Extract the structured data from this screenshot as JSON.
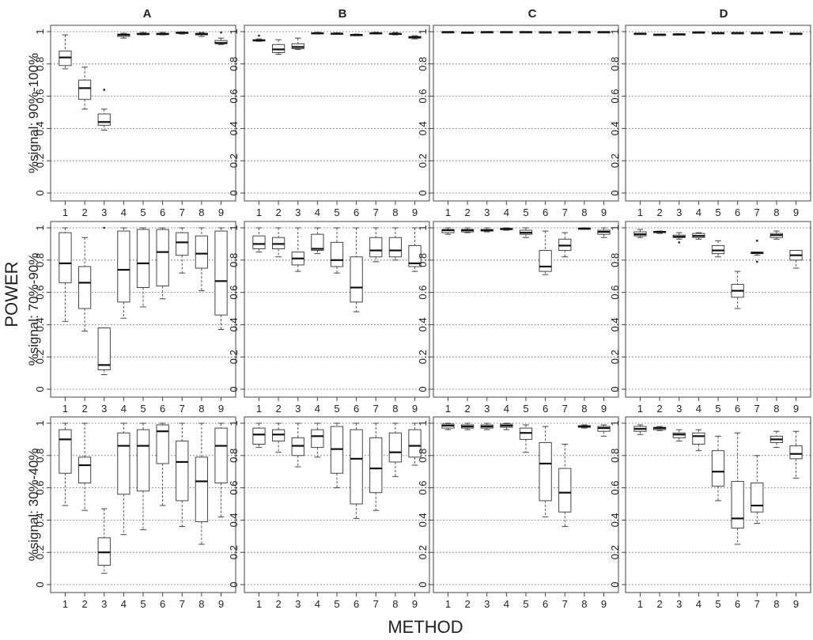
{
  "figure": {
    "ylabel": "POWER",
    "xlabel": "METHOD",
    "columns": [
      "A",
      "B",
      "C",
      "D"
    ],
    "rows": [
      "%signal: 90%-100%",
      "%signal: 70%-90%",
      "%signal: 30%-40%"
    ],
    "x_ticks": [
      "1",
      "2",
      "3",
      "4",
      "5",
      "6",
      "7",
      "8",
      "9"
    ],
    "y_ticks": [
      "0",
      "0.2",
      "0.4",
      "0.6",
      "0.8",
      "1"
    ]
  },
  "chart_data": [
    {
      "type": "box",
      "panel": "A",
      "row": "%signal: 90%-100%",
      "ylim": [
        0,
        1
      ],
      "grid": "horizontal dotted",
      "categories": [
        "1",
        "2",
        "3",
        "4",
        "5",
        "6",
        "7",
        "8",
        "9"
      ],
      "boxes": [
        {
          "min": 0.77,
          "q1": 0.79,
          "median": 0.84,
          "q3": 0.88,
          "max": 0.98
        },
        {
          "min": 0.52,
          "q1": 0.58,
          "median": 0.65,
          "q3": 0.7,
          "max": 0.78
        },
        {
          "min": 0.39,
          "q1": 0.42,
          "median": 0.44,
          "q3": 0.49,
          "max": 0.52,
          "outliers": [
            0.64
          ]
        },
        {
          "min": 0.96,
          "q1": 0.97,
          "median": 0.98,
          "q3": 0.985,
          "max": 0.99
        },
        {
          "min": 0.98,
          "q1": 0.982,
          "median": 0.985,
          "q3": 0.99,
          "max": 0.995
        },
        {
          "min": 0.98,
          "q1": 0.982,
          "median": 0.985,
          "q3": 0.99,
          "max": 0.995
        },
        {
          "min": 0.985,
          "q1": 0.99,
          "median": 0.993,
          "q3": 0.996,
          "max": 0.999
        },
        {
          "min": 0.97,
          "q1": 0.98,
          "median": 0.985,
          "q3": 0.99,
          "max": 0.995
        },
        {
          "min": 0.92,
          "q1": 0.925,
          "median": 0.93,
          "q3": 0.945,
          "max": 0.96,
          "outliers": [
            0.995
          ]
        }
      ]
    },
    {
      "type": "box",
      "panel": "B",
      "row": "%signal: 90%-100%",
      "ylim": [
        0,
        1
      ],
      "grid": "horizontal dotted",
      "categories": [
        "1",
        "2",
        "3",
        "4",
        "5",
        "6",
        "7",
        "8",
        "9"
      ],
      "boxes": [
        {
          "min": 0.94,
          "q1": 0.943,
          "median": 0.946,
          "q3": 0.95,
          "max": 0.955,
          "outliers": [
            0.975
          ]
        },
        {
          "min": 0.86,
          "q1": 0.87,
          "median": 0.89,
          "q3": 0.92,
          "max": 0.95
        },
        {
          "min": 0.89,
          "q1": 0.895,
          "median": 0.905,
          "q3": 0.925,
          "max": 0.96
        },
        {
          "min": 0.985,
          "q1": 0.988,
          "median": 0.99,
          "q3": 0.993,
          "max": 0.996
        },
        {
          "min": 0.983,
          "q1": 0.986,
          "median": 0.988,
          "q3": 0.99,
          "max": 0.993
        },
        {
          "min": 0.975,
          "q1": 0.978,
          "median": 0.98,
          "q3": 0.982,
          "max": 0.985
        },
        {
          "min": 0.985,
          "q1": 0.988,
          "median": 0.99,
          "q3": 0.993,
          "max": 0.996
        },
        {
          "min": 0.98,
          "q1": 0.983,
          "median": 0.986,
          "q3": 0.99,
          "max": 0.995
        },
        {
          "min": 0.955,
          "q1": 0.96,
          "median": 0.965,
          "q3": 0.97,
          "max": 0.975
        }
      ]
    },
    {
      "type": "box",
      "panel": "C",
      "row": "%signal: 90%-100%",
      "ylim": [
        0,
        1
      ],
      "grid": "horizontal dotted",
      "categories": [
        "1",
        "2",
        "3",
        "4",
        "5",
        "6",
        "7",
        "8",
        "9"
      ],
      "boxes": [
        {
          "min": 0.996,
          "q1": 0.997,
          "median": 0.998,
          "q3": 0.999,
          "max": 1.0
        },
        {
          "min": 0.992,
          "q1": 0.994,
          "median": 0.995,
          "q3": 0.996,
          "max": 0.997
        },
        {
          "min": 0.996,
          "q1": 0.997,
          "median": 0.998,
          "q3": 0.999,
          "max": 1.0
        },
        {
          "min": 0.996,
          "q1": 0.997,
          "median": 0.998,
          "q3": 0.999,
          "max": 1.0
        },
        {
          "min": 0.996,
          "q1": 0.997,
          "median": 0.998,
          "q3": 0.999,
          "max": 1.0
        },
        {
          "min": 0.995,
          "q1": 0.996,
          "median": 0.997,
          "q3": 0.998,
          "max": 0.999
        },
        {
          "min": 0.995,
          "q1": 0.996,
          "median": 0.997,
          "q3": 0.998,
          "max": 0.999
        },
        {
          "min": 0.996,
          "q1": 0.997,
          "median": 0.998,
          "q3": 0.999,
          "max": 1.0
        },
        {
          "min": 0.996,
          "q1": 0.997,
          "median": 0.998,
          "q3": 0.999,
          "max": 1.0
        }
      ]
    },
    {
      "type": "box",
      "panel": "D",
      "row": "%signal: 90%-100%",
      "ylim": [
        0,
        1
      ],
      "grid": "horizontal dotted",
      "categories": [
        "1",
        "2",
        "3",
        "4",
        "5",
        "6",
        "7",
        "8",
        "9"
      ],
      "boxes": [
        {
          "min": 0.985,
          "q1": 0.987,
          "median": 0.988,
          "q3": 0.989,
          "max": 0.99
        },
        {
          "min": 0.98,
          "q1": 0.981,
          "median": 0.982,
          "q3": 0.983,
          "max": 0.984
        },
        {
          "min": 0.982,
          "q1": 0.983,
          "median": 0.984,
          "q3": 0.985,
          "max": 0.986
        },
        {
          "min": 0.994,
          "q1": 0.995,
          "median": 0.996,
          "q3": 0.997,
          "max": 0.998
        },
        {
          "min": 0.99,
          "q1": 0.991,
          "median": 0.992,
          "q3": 0.993,
          "max": 0.994
        },
        {
          "min": 0.99,
          "q1": 0.991,
          "median": 0.992,
          "q3": 0.993,
          "max": 0.994
        },
        {
          "min": 0.99,
          "q1": 0.991,
          "median": 0.992,
          "q3": 0.993,
          "max": 0.994
        },
        {
          "min": 0.994,
          "q1": 0.995,
          "median": 0.996,
          "q3": 0.997,
          "max": 0.998
        },
        {
          "min": 0.986,
          "q1": 0.987,
          "median": 0.988,
          "q3": 0.989,
          "max": 0.99
        }
      ]
    },
    {
      "type": "box",
      "panel": "A",
      "row": "%signal: 70%-90%",
      "ylim": [
        0,
        1
      ],
      "grid": "horizontal dotted",
      "categories": [
        "1",
        "2",
        "3",
        "4",
        "5",
        "6",
        "7",
        "8",
        "9"
      ],
      "boxes": [
        {
          "min": 0.42,
          "q1": 0.66,
          "median": 0.78,
          "q3": 0.97,
          "max": 1.0
        },
        {
          "min": 0.36,
          "q1": 0.5,
          "median": 0.66,
          "q3": 0.76,
          "max": 0.94
        },
        {
          "min": 0.09,
          "q1": 0.12,
          "median": 0.15,
          "q3": 0.38,
          "max": 0.38,
          "outliers": [
            1.0
          ]
        },
        {
          "min": 0.44,
          "q1": 0.54,
          "median": 0.74,
          "q3": 0.98,
          "max": 1.0
        },
        {
          "min": 0.51,
          "q1": 0.63,
          "median": 0.78,
          "q3": 0.99,
          "max": 1.0
        },
        {
          "min": 0.56,
          "q1": 0.64,
          "median": 0.85,
          "q3": 0.99,
          "max": 1.0
        },
        {
          "min": 0.72,
          "q1": 0.83,
          "median": 0.91,
          "q3": 0.97,
          "max": 1.0
        },
        {
          "min": 0.61,
          "q1": 0.75,
          "median": 0.84,
          "q3": 0.95,
          "max": 1.0
        },
        {
          "min": 0.37,
          "q1": 0.46,
          "median": 0.67,
          "q3": 0.98,
          "max": 1.0
        }
      ]
    },
    {
      "type": "box",
      "panel": "B",
      "row": "%signal: 70%-90%",
      "ylim": [
        0,
        1
      ],
      "grid": "horizontal dotted",
      "categories": [
        "1",
        "2",
        "3",
        "4",
        "5",
        "6",
        "7",
        "8",
        "9"
      ],
      "boxes": [
        {
          "min": 0.85,
          "q1": 0.87,
          "median": 0.9,
          "q3": 0.95,
          "max": 1.0
        },
        {
          "min": 0.82,
          "q1": 0.87,
          "median": 0.9,
          "q3": 0.94,
          "max": 1.0
        },
        {
          "min": 0.73,
          "q1": 0.77,
          "median": 0.81,
          "q3": 0.85,
          "max": 1.0
        },
        {
          "min": 0.84,
          "q1": 0.86,
          "median": 0.87,
          "q3": 0.96,
          "max": 1.0
        },
        {
          "min": 0.72,
          "q1": 0.76,
          "median": 0.8,
          "q3": 0.91,
          "max": 1.0
        },
        {
          "min": 0.48,
          "q1": 0.54,
          "median": 0.63,
          "q3": 0.82,
          "max": 1.0
        },
        {
          "min": 0.79,
          "q1": 0.82,
          "median": 0.86,
          "q3": 0.94,
          "max": 1.0
        },
        {
          "min": 0.8,
          "q1": 0.82,
          "median": 0.86,
          "q3": 0.94,
          "max": 1.0
        },
        {
          "min": 0.73,
          "q1": 0.76,
          "median": 0.78,
          "q3": 0.89,
          "max": 1.0
        }
      ]
    },
    {
      "type": "box",
      "panel": "C",
      "row": "%signal: 70%-90%",
      "ylim": [
        0,
        1
      ],
      "grid": "horizontal dotted",
      "categories": [
        "1",
        "2",
        "3",
        "4",
        "5",
        "6",
        "7",
        "8",
        "9"
      ],
      "boxes": [
        {
          "min": 0.96,
          "q1": 0.97,
          "median": 0.985,
          "q3": 0.99,
          "max": 1.0
        },
        {
          "min": 0.97,
          "q1": 0.975,
          "median": 0.985,
          "q3": 0.99,
          "max": 1.0
        },
        {
          "min": 0.975,
          "q1": 0.98,
          "median": 0.985,
          "q3": 0.99,
          "max": 1.0
        },
        {
          "min": 0.985,
          "q1": 0.99,
          "median": 0.993,
          "q3": 0.996,
          "max": 1.0
        },
        {
          "min": 0.94,
          "q1": 0.96,
          "median": 0.97,
          "q3": 0.985,
          "max": 1.0
        },
        {
          "min": 0.71,
          "q1": 0.73,
          "median": 0.76,
          "q3": 0.86,
          "max": 0.98
        },
        {
          "min": 0.82,
          "q1": 0.86,
          "median": 0.89,
          "q3": 0.93,
          "max": 0.97
        },
        {
          "min": 0.99,
          "q1": 0.993,
          "median": 0.996,
          "q3": 0.998,
          "max": 1.0
        },
        {
          "min": 0.94,
          "q1": 0.96,
          "median": 0.975,
          "q3": 0.985,
          "max": 1.0
        }
      ]
    },
    {
      "type": "box",
      "panel": "D",
      "row": "%signal: 70%-90%",
      "ylim": [
        0,
        1
      ],
      "grid": "horizontal dotted",
      "categories": [
        "1",
        "2",
        "3",
        "4",
        "5",
        "6",
        "7",
        "8",
        "9"
      ],
      "boxes": [
        {
          "min": 0.94,
          "q1": 0.95,
          "median": 0.96,
          "q3": 0.975,
          "max": 0.99
        },
        {
          "min": 0.965,
          "q1": 0.97,
          "median": 0.975,
          "q3": 0.978,
          "max": 0.98
        },
        {
          "min": 0.93,
          "q1": 0.94,
          "median": 0.945,
          "q3": 0.955,
          "max": 0.97,
          "outliers": [
            0.91
          ]
        },
        {
          "min": 0.93,
          "q1": 0.94,
          "median": 0.95,
          "q3": 0.965,
          "max": 0.97
        },
        {
          "min": 0.82,
          "q1": 0.84,
          "median": 0.86,
          "q3": 0.89,
          "max": 0.92
        },
        {
          "min": 0.5,
          "q1": 0.57,
          "median": 0.61,
          "q3": 0.65,
          "max": 0.73
        },
        {
          "min": 0.83,
          "q1": 0.84,
          "median": 0.845,
          "q3": 0.85,
          "max": 0.85,
          "outliers": [
            0.79,
            0.92
          ]
        },
        {
          "min": 0.93,
          "q1": 0.94,
          "median": 0.955,
          "q3": 0.965,
          "max": 0.98
        },
        {
          "min": 0.75,
          "q1": 0.8,
          "median": 0.83,
          "q3": 0.86,
          "max": 0.86
        }
      ]
    },
    {
      "type": "box",
      "panel": "A",
      "row": "%signal: 30%-40%",
      "ylim": [
        0,
        1
      ],
      "grid": "horizontal dotted",
      "categories": [
        "1",
        "2",
        "3",
        "4",
        "5",
        "6",
        "7",
        "8",
        "9"
      ],
      "boxes": [
        {
          "min": 0.49,
          "q1": 0.69,
          "median": 0.9,
          "q3": 0.96,
          "max": 1.0
        },
        {
          "min": 0.46,
          "q1": 0.63,
          "median": 0.74,
          "q3": 0.79,
          "max": 1.0
        },
        {
          "min": 0.07,
          "q1": 0.12,
          "median": 0.2,
          "q3": 0.29,
          "max": 0.47
        },
        {
          "min": 0.31,
          "q1": 0.56,
          "median": 0.86,
          "q3": 0.94,
          "max": 1.0
        },
        {
          "min": 0.34,
          "q1": 0.58,
          "median": 0.86,
          "q3": 0.96,
          "max": 1.0
        },
        {
          "min": 0.49,
          "q1": 0.75,
          "median": 0.95,
          "q3": 0.99,
          "max": 1.0
        },
        {
          "min": 0.36,
          "q1": 0.52,
          "median": 0.76,
          "q3": 0.89,
          "max": 1.0
        },
        {
          "min": 0.25,
          "q1": 0.39,
          "median": 0.64,
          "q3": 0.79,
          "max": 1.0
        },
        {
          "min": 0.42,
          "q1": 0.63,
          "median": 0.86,
          "q3": 0.97,
          "max": 1.0
        }
      ]
    },
    {
      "type": "box",
      "panel": "B",
      "row": "%signal: 30%-40%",
      "ylim": [
        0,
        1
      ],
      "grid": "horizontal dotted",
      "categories": [
        "1",
        "2",
        "3",
        "4",
        "5",
        "6",
        "7",
        "8",
        "9"
      ],
      "boxes": [
        {
          "min": 0.85,
          "q1": 0.87,
          "median": 0.93,
          "q3": 0.97,
          "max": 1.0
        },
        {
          "min": 0.82,
          "q1": 0.89,
          "median": 0.93,
          "q3": 0.96,
          "max": 1.0
        },
        {
          "min": 0.73,
          "q1": 0.8,
          "median": 0.86,
          "q3": 0.91,
          "max": 1.0
        },
        {
          "min": 0.79,
          "q1": 0.85,
          "median": 0.92,
          "q3": 0.96,
          "max": 1.0
        },
        {
          "min": 0.6,
          "q1": 0.69,
          "median": 0.84,
          "q3": 0.98,
          "max": 1.0
        },
        {
          "min": 0.41,
          "q1": 0.5,
          "median": 0.78,
          "q3": 0.96,
          "max": 1.0
        },
        {
          "min": 0.46,
          "q1": 0.57,
          "median": 0.72,
          "q3": 0.91,
          "max": 1.0
        },
        {
          "min": 0.67,
          "q1": 0.76,
          "median": 0.82,
          "q3": 0.94,
          "max": 1.0
        },
        {
          "min": 0.74,
          "q1": 0.79,
          "median": 0.86,
          "q3": 0.96,
          "max": 1.0
        }
      ]
    },
    {
      "type": "box",
      "panel": "C",
      "row": "%signal: 30%-40%",
      "ylim": [
        0,
        1
      ],
      "grid": "horizontal dotted",
      "categories": [
        "1",
        "2",
        "3",
        "4",
        "5",
        "6",
        "7",
        "8",
        "9"
      ],
      "boxes": [
        {
          "min": 0.96,
          "q1": 0.97,
          "median": 0.985,
          "q3": 0.995,
          "max": 1.0
        },
        {
          "min": 0.96,
          "q1": 0.97,
          "median": 0.98,
          "q3": 0.99,
          "max": 1.0
        },
        {
          "min": 0.96,
          "q1": 0.97,
          "median": 0.98,
          "q3": 0.99,
          "max": 1.0
        },
        {
          "min": 0.96,
          "q1": 0.975,
          "median": 0.985,
          "q3": 0.995,
          "max": 1.0
        },
        {
          "min": 0.82,
          "q1": 0.9,
          "median": 0.94,
          "q3": 0.97,
          "max": 0.99
        },
        {
          "min": 0.42,
          "q1": 0.52,
          "median": 0.75,
          "q3": 0.88,
          "max": 0.98
        },
        {
          "min": 0.36,
          "q1": 0.45,
          "median": 0.57,
          "q3": 0.72,
          "max": 0.87
        },
        {
          "min": 0.97,
          "q1": 0.975,
          "median": 0.98,
          "q3": 0.985,
          "max": 0.99
        },
        {
          "min": 0.92,
          "q1": 0.95,
          "median": 0.97,
          "q3": 0.98,
          "max": 0.99
        }
      ]
    },
    {
      "type": "box",
      "panel": "D",
      "row": "%signal: 30%-40%",
      "ylim": [
        0,
        1
      ],
      "grid": "horizontal dotted",
      "categories": [
        "1",
        "2",
        "3",
        "4",
        "5",
        "6",
        "7",
        "8",
        "9"
      ],
      "boxes": [
        {
          "min": 0.93,
          "q1": 0.95,
          "median": 0.965,
          "q3": 0.98,
          "max": 0.99
        },
        {
          "min": 0.955,
          "q1": 0.96,
          "median": 0.97,
          "q3": 0.975,
          "max": 0.98
        },
        {
          "min": 0.89,
          "q1": 0.91,
          "median": 0.93,
          "q3": 0.94,
          "max": 0.96
        },
        {
          "min": 0.83,
          "q1": 0.87,
          "median": 0.92,
          "q3": 0.94,
          "max": 0.96
        },
        {
          "min": 0.52,
          "q1": 0.61,
          "median": 0.7,
          "q3": 0.83,
          "max": 0.92
        },
        {
          "min": 0.25,
          "q1": 0.35,
          "median": 0.41,
          "q3": 0.64,
          "max": 0.94
        },
        {
          "min": 0.38,
          "q1": 0.45,
          "median": 0.49,
          "q3": 0.63,
          "max": 0.8
        },
        {
          "min": 0.85,
          "q1": 0.88,
          "median": 0.9,
          "q3": 0.92,
          "max": 0.95
        },
        {
          "min": 0.66,
          "q1": 0.78,
          "median": 0.81,
          "q3": 0.86,
          "max": 0.95
        }
      ]
    }
  ]
}
